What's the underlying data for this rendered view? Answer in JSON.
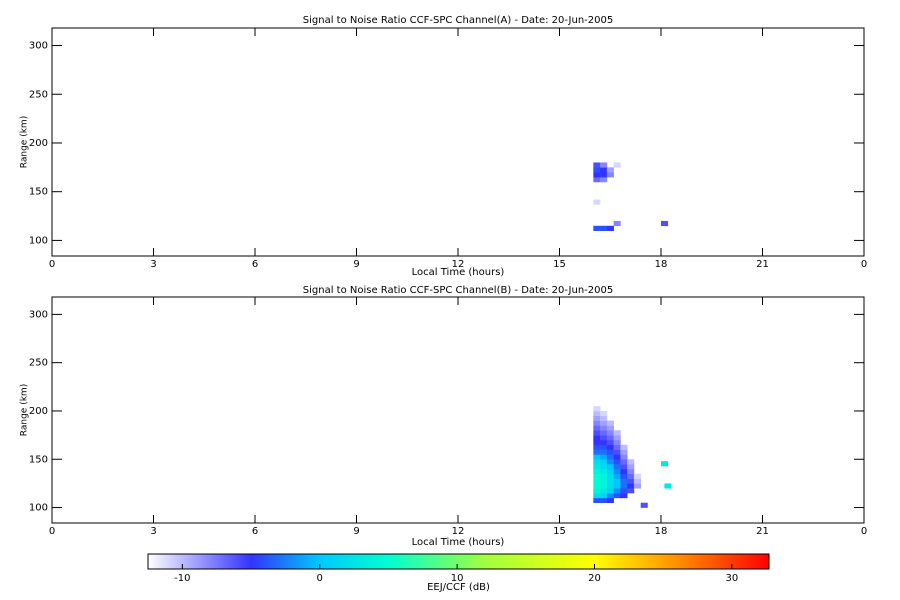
{
  "chart_data": [
    {
      "type": "heatmap",
      "title": "Signal to Noise Ratio CCF-SPC Channel(A) - Date: 20-Jun-2005",
      "x_label": "Local Time (hours)",
      "y_label": "Range (km)",
      "xlim": [
        0,
        24
      ],
      "xticks": [
        0,
        3,
        6,
        9,
        12,
        15,
        18,
        21,
        {
          "value": 24,
          "label": "0"
        }
      ],
      "ylim": [
        84,
        318
      ],
      "yticks": [
        100,
        150,
        200,
        250,
        300
      ],
      "cells": [
        [
          16.0,
          160,
          -7
        ],
        [
          16.0,
          165,
          -5
        ],
        [
          16.0,
          170,
          -4
        ],
        [
          16.0,
          175,
          -6
        ],
        [
          16.2,
          160,
          -8
        ],
        [
          16.2,
          165,
          -5
        ],
        [
          16.2,
          170,
          -5
        ],
        [
          16.2,
          175,
          -8
        ],
        [
          16.4,
          165,
          -8
        ],
        [
          16.4,
          170,
          -9
        ],
        [
          16.6,
          175,
          -11
        ],
        [
          16.0,
          110,
          -4
        ],
        [
          16.2,
          110,
          -4
        ],
        [
          16.4,
          110,
          -5
        ],
        [
          16.6,
          115,
          -8
        ],
        [
          16.0,
          137,
          -11
        ],
        [
          18.0,
          115,
          -6
        ]
      ]
    },
    {
      "type": "heatmap",
      "title": "Signal to Noise Ratio CCF-SPC Channel(B) - Date: 20-Jun-2005",
      "x_label": "Local Time (hours)",
      "y_label": "Range (km)",
      "xlim": [
        0,
        24
      ],
      "xticks": [
        0,
        3,
        6,
        9,
        12,
        15,
        18,
        21,
        {
          "value": 24,
          "label": "0"
        }
      ],
      "ylim": [
        84,
        318
      ],
      "yticks": [
        100,
        150,
        200,
        250,
        300
      ],
      "cells": [
        [
          16.0,
          105,
          -4
        ],
        [
          16.0,
          110,
          2
        ],
        [
          16.0,
          115,
          4
        ],
        [
          16.0,
          120,
          5
        ],
        [
          16.0,
          125,
          5
        ],
        [
          16.0,
          130,
          5
        ],
        [
          16.0,
          135,
          4
        ],
        [
          16.0,
          140,
          3
        ],
        [
          16.0,
          145,
          2
        ],
        [
          16.0,
          150,
          0
        ],
        [
          16.0,
          155,
          -3
        ],
        [
          16.0,
          160,
          -4
        ],
        [
          16.0,
          165,
          -5
        ],
        [
          16.0,
          170,
          -5
        ],
        [
          16.0,
          175,
          -6
        ],
        [
          16.0,
          180,
          -7
        ],
        [
          16.0,
          185,
          -8
        ],
        [
          16.0,
          190,
          -9
        ],
        [
          16.0,
          195,
          -10
        ],
        [
          16.0,
          200,
          -11
        ],
        [
          16.2,
          105,
          -4
        ],
        [
          16.2,
          110,
          1
        ],
        [
          16.2,
          115,
          3
        ],
        [
          16.2,
          120,
          4
        ],
        [
          16.2,
          125,
          4
        ],
        [
          16.2,
          130,
          4
        ],
        [
          16.2,
          135,
          3
        ],
        [
          16.2,
          140,
          2
        ],
        [
          16.2,
          145,
          1
        ],
        [
          16.2,
          150,
          -1
        ],
        [
          16.2,
          155,
          -3
        ],
        [
          16.2,
          160,
          -4
        ],
        [
          16.2,
          165,
          -5
        ],
        [
          16.2,
          170,
          -6
        ],
        [
          16.2,
          175,
          -7
        ],
        [
          16.2,
          180,
          -8
        ],
        [
          16.2,
          185,
          -9
        ],
        [
          16.2,
          190,
          -10
        ],
        [
          16.2,
          195,
          -11
        ],
        [
          16.4,
          105,
          -5
        ],
        [
          16.4,
          110,
          -2
        ],
        [
          16.4,
          115,
          1
        ],
        [
          16.4,
          120,
          2
        ],
        [
          16.4,
          125,
          2
        ],
        [
          16.4,
          130,
          2
        ],
        [
          16.4,
          135,
          1
        ],
        [
          16.4,
          140,
          0
        ],
        [
          16.4,
          145,
          -2
        ],
        [
          16.4,
          150,
          -3
        ],
        [
          16.4,
          155,
          -4
        ],
        [
          16.4,
          160,
          -5
        ],
        [
          16.4,
          165,
          -6
        ],
        [
          16.4,
          170,
          -7
        ],
        [
          16.4,
          175,
          -8
        ],
        [
          16.4,
          180,
          -9
        ],
        [
          16.4,
          185,
          -10
        ],
        [
          16.6,
          110,
          -4
        ],
        [
          16.6,
          115,
          -2
        ],
        [
          16.6,
          120,
          0
        ],
        [
          16.6,
          125,
          0
        ],
        [
          16.6,
          130,
          -1
        ],
        [
          16.6,
          135,
          -2
        ],
        [
          16.6,
          140,
          -3
        ],
        [
          16.6,
          145,
          -4
        ],
        [
          16.6,
          150,
          -5
        ],
        [
          16.6,
          155,
          -6
        ],
        [
          16.6,
          160,
          -7
        ],
        [
          16.6,
          165,
          -8
        ],
        [
          16.6,
          170,
          -9
        ],
        [
          16.6,
          175,
          -10
        ],
        [
          16.8,
          110,
          -5
        ],
        [
          16.8,
          115,
          -4
        ],
        [
          16.8,
          120,
          -3
        ],
        [
          16.8,
          125,
          -3
        ],
        [
          16.8,
          130,
          -4
        ],
        [
          16.8,
          135,
          -5
        ],
        [
          16.8,
          140,
          -6
        ],
        [
          16.8,
          145,
          -7
        ],
        [
          16.8,
          150,
          -8
        ],
        [
          16.8,
          155,
          -9
        ],
        [
          16.8,
          160,
          -10
        ],
        [
          17.0,
          115,
          -6
        ],
        [
          17.0,
          120,
          -5
        ],
        [
          17.0,
          125,
          -6
        ],
        [
          17.0,
          130,
          -7
        ],
        [
          17.0,
          135,
          -8
        ],
        [
          17.0,
          140,
          -9
        ],
        [
          17.0,
          145,
          -10
        ],
        [
          17.2,
          120,
          -9
        ],
        [
          17.2,
          125,
          -10
        ],
        [
          17.2,
          130,
          -11
        ],
        [
          18.0,
          143,
          3
        ],
        [
          18.1,
          120,
          3
        ],
        [
          17.4,
          100,
          -6
        ]
      ]
    }
  ],
  "colorbar": {
    "label": "EEJ/CCF (dB)",
    "lim": [
      -12.5,
      32.7
    ],
    "ticks": [
      -10,
      0,
      10,
      20,
      30
    ],
    "stops": [
      [
        -12.5,
        "#ffffff"
      ],
      [
        -5,
        "#3333ff"
      ],
      [
        0,
        "#00c8ff"
      ],
      [
        5,
        "#00ffd0"
      ],
      [
        12,
        "#a0ff40"
      ],
      [
        20,
        "#ffff00"
      ],
      [
        26,
        "#ff9000"
      ],
      [
        32.7,
        "#ff0000"
      ]
    ]
  }
}
